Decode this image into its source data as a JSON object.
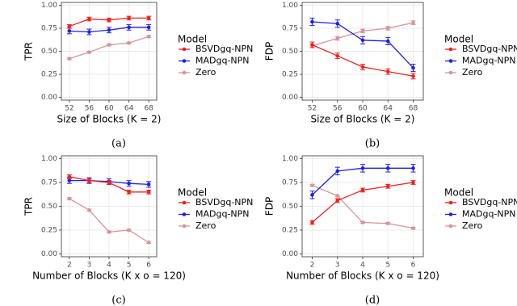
{
  "chart_data": [
    {
      "type": "line",
      "caption": "(a)",
      "x_label": "Size of Blocks (K = 2)",
      "y_label": "TPR",
      "legend_title": "Model",
      "x": [
        52,
        56,
        60,
        64,
        68
      ],
      "xlim": [
        50.4,
        69.6
      ],
      "xticks": [
        52,
        56,
        60,
        64,
        68
      ],
      "ylim": [
        -0.03,
        1.03
      ],
      "yticks": [
        {
          "value": 0,
          "label": "0.00"
        },
        {
          "value": 0.25,
          "label": "0.25"
        },
        {
          "value": 0.5,
          "label": "0.50"
        },
        {
          "value": 0.75,
          "label": "0.75"
        },
        {
          "value": 1,
          "label": "1.00"
        }
      ],
      "grid": true,
      "series": [
        {
          "name": "BSVDgq-NPN",
          "color": "#ee2020",
          "values": [
            0.77,
            0.85,
            0.84,
            0.86,
            0.86
          ],
          "errors": [
            0.02,
            0.02,
            0.02,
            0.02,
            0.02
          ]
        },
        {
          "name": "MADgq-NPN",
          "color": "#1f1fe6",
          "values": [
            0.72,
            0.71,
            0.73,
            0.76,
            0.76
          ],
          "errors": [
            0.03,
            0.03,
            0.03,
            0.03,
            0.03
          ]
        },
        {
          "name": "Zero",
          "color": "#d3949f",
          "values": [
            0.42,
            0.49,
            0.57,
            0.59,
            0.66
          ],
          "errors": [
            0.01,
            0.01,
            0.01,
            0.01,
            0.01
          ]
        }
      ]
    },
    {
      "type": "line",
      "caption": "(b)",
      "x_label": "Size of Blocks (K = 2)",
      "y_label": "FDP",
      "legend_title": "Model",
      "x": [
        52,
        56,
        60,
        64,
        68
      ],
      "xlim": [
        50.4,
        69.6
      ],
      "xticks": [
        52,
        56,
        60,
        64,
        68
      ],
      "ylim": [
        -0.03,
        1.03
      ],
      "yticks": [
        {
          "value": 0,
          "label": "0.00"
        },
        {
          "value": 0.25,
          "label": "0.25"
        },
        {
          "value": 0.5,
          "label": "0.50"
        },
        {
          "value": 0.75,
          "label": "0.75"
        },
        {
          "value": 1,
          "label": "1.00"
        }
      ],
      "grid": true,
      "series": [
        {
          "name": "BSVDgq-NPN",
          "color": "#ee2020",
          "values": [
            0.57,
            0.45,
            0.33,
            0.28,
            0.23
          ],
          "errors": [
            0.03,
            0.03,
            0.03,
            0.03,
            0.03
          ]
        },
        {
          "name": "MADgq-NPN",
          "color": "#1f1fe6",
          "values": [
            0.82,
            0.8,
            0.62,
            0.61,
            0.32
          ],
          "errors": [
            0.04,
            0.04,
            0.04,
            0.04,
            0.04
          ]
        },
        {
          "name": "Zero",
          "color": "#d3949f",
          "values": [
            0.56,
            0.64,
            0.72,
            0.75,
            0.81
          ],
          "errors": [
            0.02,
            0.02,
            0.02,
            0.02,
            0.02
          ]
        }
      ]
    },
    {
      "type": "line",
      "caption": "(c)",
      "x_label": "Number of Blocks (K x o = 120)",
      "y_label": "TPR",
      "legend_title": "Model",
      "x": [
        2,
        3,
        4,
        5,
        6
      ],
      "xlim": [
        1.6,
        6.4
      ],
      "xticks": [
        2,
        3,
        4,
        5,
        6
      ],
      "ylim": [
        -0.03,
        1.03
      ],
      "yticks": [
        {
          "value": 0,
          "label": "0.00"
        },
        {
          "value": 0.25,
          "label": "0.25"
        },
        {
          "value": 0.5,
          "label": "0.50"
        },
        {
          "value": 0.75,
          "label": "0.75"
        },
        {
          "value": 1,
          "label": "1.00"
        }
      ],
      "grid": true,
      "series": [
        {
          "name": "BSVDgq-NPN",
          "color": "#ee2020",
          "values": [
            0.81,
            0.77,
            0.75,
            0.65,
            0.65
          ],
          "errors": [
            0.02,
            0.02,
            0.02,
            0.02,
            0.02
          ]
        },
        {
          "name": "MADgq-NPN",
          "color": "#1f1fe6",
          "values": [
            0.77,
            0.77,
            0.76,
            0.74,
            0.73
          ],
          "errors": [
            0.03,
            0.03,
            0.03,
            0.03,
            0.03
          ]
        },
        {
          "name": "Zero",
          "color": "#d3949f",
          "values": [
            0.58,
            0.46,
            0.23,
            0.25,
            0.12
          ],
          "errors": [
            0.01,
            0.01,
            0.01,
            0.01,
            0.01
          ]
        }
      ]
    },
    {
      "type": "line",
      "caption": "(d)",
      "x_label": "Number of Blocks (K x o = 120)",
      "y_label": "FDP",
      "legend_title": "Model",
      "x": [
        2,
        3,
        4,
        5,
        6
      ],
      "xlim": [
        1.6,
        6.4
      ],
      "xticks": [
        2,
        3,
        4,
        5,
        6
      ],
      "ylim": [
        -0.03,
        1.03
      ],
      "yticks": [
        {
          "value": 0,
          "label": "0.00"
        },
        {
          "value": 0.25,
          "label": "0.25"
        },
        {
          "value": 0.5,
          "label": "0.50"
        },
        {
          "value": 0.75,
          "label": "0.75"
        },
        {
          "value": 1,
          "label": "1.00"
        }
      ],
      "grid": true,
      "series": [
        {
          "name": "BSVDgq-NPN",
          "color": "#ee2020",
          "values": [
            0.33,
            0.56,
            0.67,
            0.71,
            0.75
          ],
          "errors": [
            0.02,
            0.02,
            0.02,
            0.02,
            0.02
          ]
        },
        {
          "name": "MADgq-NPN",
          "color": "#1f1fe6",
          "values": [
            0.62,
            0.87,
            0.9,
            0.9,
            0.9
          ],
          "errors": [
            0.04,
            0.04,
            0.04,
            0.04,
            0.04
          ]
        },
        {
          "name": "Zero",
          "color": "#d3949f",
          "values": [
            0.72,
            0.61,
            0.33,
            0.32,
            0.27
          ],
          "errors": [
            0.01,
            0.01,
            0.01,
            0.01,
            0.01
          ]
        }
      ]
    }
  ]
}
